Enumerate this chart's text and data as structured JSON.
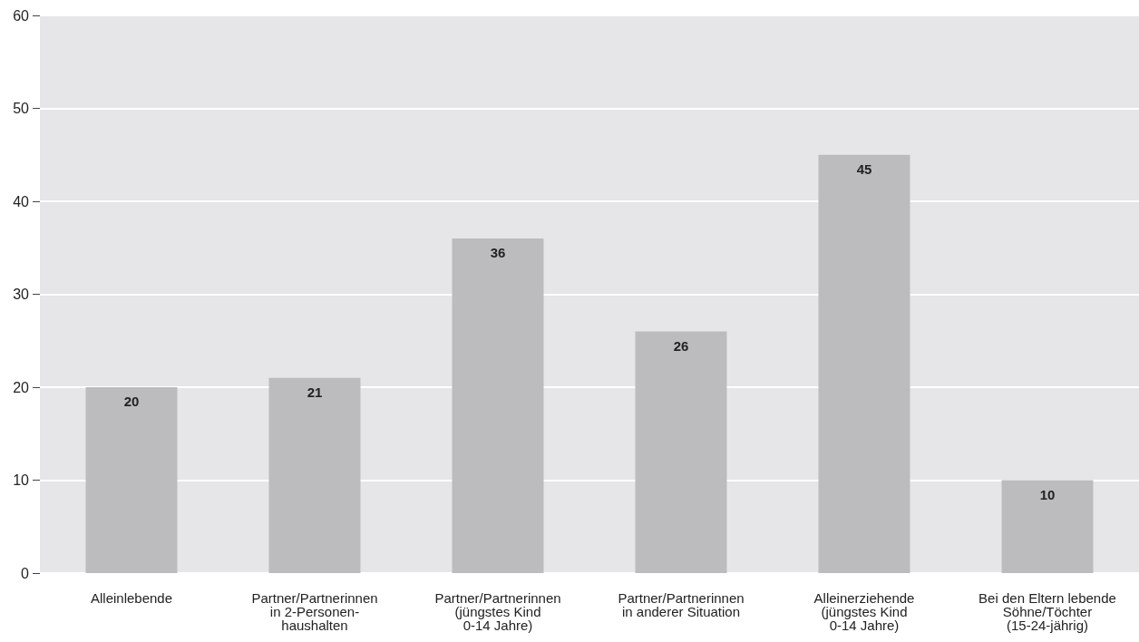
{
  "chart_data": {
    "type": "bar",
    "categories": [
      "Alleinlebende",
      "Partner/Partnerinnen\nin 2-Personen-\nhaushalten",
      "Partner/Partnerinnen\n(jüngstes Kind\n0-14 Jahre)",
      "Partner/Partnerinnen\nin anderer Situation",
      "Alleinerziehende\n(jüngstes Kind\n0-14 Jahre)",
      "Bei den Eltern lebende\nSöhne/Töchter\n(15-24-jährig)"
    ],
    "values": [
      20,
      21,
      36,
      26,
      45,
      10
    ],
    "color": "#bcbcbf",
    "data_labels": true,
    "ylim": [
      0,
      60
    ],
    "yticks": [
      0,
      10,
      20,
      30,
      40,
      50,
      60
    ],
    "grid": "y"
  }
}
